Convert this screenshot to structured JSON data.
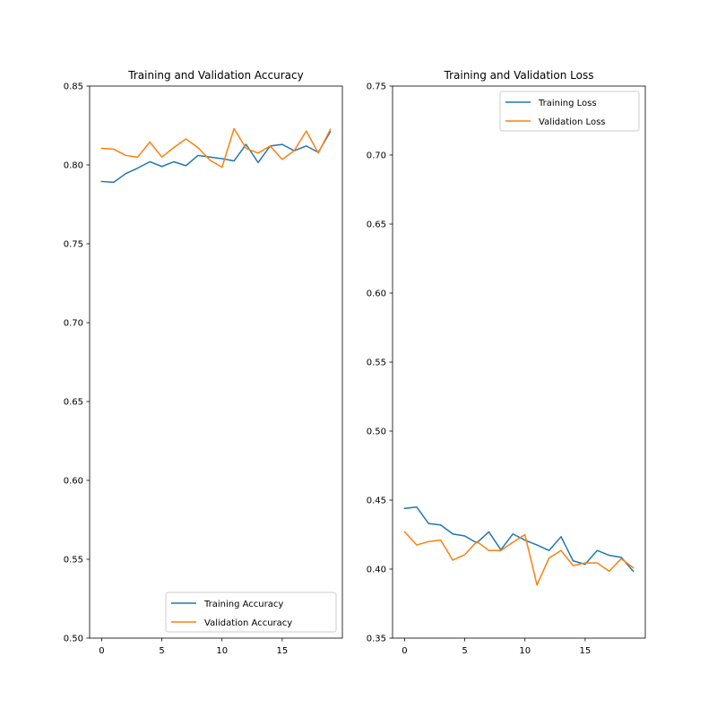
{
  "chart_data": [
    {
      "type": "line",
      "title": "Training and Validation Accuracy",
      "xlabel": "",
      "ylabel": "",
      "xlim": [
        -1,
        20
      ],
      "ylim": [
        0.5,
        0.85
      ],
      "xticks": [
        "0",
        "5",
        "10",
        "15"
      ],
      "xtick_values": [
        0,
        5,
        10,
        15
      ],
      "yticks": [
        "0.50",
        "0.55",
        "0.60",
        "0.65",
        "0.70",
        "0.75",
        "0.80",
        "0.85"
      ],
      "ytick_values": [
        0.5,
        0.55,
        0.6,
        0.65,
        0.7,
        0.75,
        0.8,
        0.85
      ],
      "grid": false,
      "legend_position": "lower-right",
      "x": [
        0,
        1,
        2,
        3,
        4,
        5,
        6,
        7,
        8,
        9,
        10,
        11,
        12,
        13,
        14,
        15,
        16,
        17,
        18,
        19
      ],
      "series": [
        {
          "name": "Training Accuracy",
          "color": "#1f77b4",
          "values": [
            0.7895,
            0.789,
            0.7945,
            0.798,
            0.802,
            0.799,
            0.802,
            0.7995,
            0.806,
            0.805,
            0.804,
            0.8025,
            0.813,
            0.8015,
            0.812,
            0.813,
            0.809,
            0.812,
            0.808,
            0.821
          ]
        },
        {
          "name": "Validation Accuracy",
          "color": "#ff7f0e",
          "values": [
            0.8105,
            0.81,
            0.806,
            0.805,
            0.8145,
            0.805,
            0.811,
            0.8165,
            0.811,
            0.803,
            0.7985,
            0.823,
            0.8105,
            0.8075,
            0.812,
            0.8035,
            0.809,
            0.8215,
            0.8075,
            0.8225
          ]
        }
      ]
    },
    {
      "type": "line",
      "title": "Training and Validation Loss",
      "xlabel": "",
      "ylabel": "",
      "xlim": [
        -1,
        20
      ],
      "ylim": [
        0.35,
        0.75
      ],
      "xticks": [
        "0",
        "5",
        "10",
        "15"
      ],
      "xtick_values": [
        0,
        5,
        10,
        15
      ],
      "yticks": [
        "0.35",
        "0.40",
        "0.45",
        "0.50",
        "0.55",
        "0.60",
        "0.65",
        "0.70",
        "0.75"
      ],
      "ytick_values": [
        0.35,
        0.4,
        0.45,
        0.5,
        0.55,
        0.6,
        0.65,
        0.7,
        0.75
      ],
      "grid": false,
      "legend_position": "upper-right",
      "x": [
        0,
        1,
        2,
        3,
        4,
        5,
        6,
        7,
        8,
        9,
        10,
        11,
        12,
        13,
        14,
        15,
        16,
        17,
        18,
        19
      ],
      "series": [
        {
          "name": "Training Loss",
          "color": "#1f77b4",
          "values": [
            0.444,
            0.445,
            0.433,
            0.432,
            0.4255,
            0.424,
            0.419,
            0.427,
            0.414,
            0.4255,
            0.421,
            0.4175,
            0.4135,
            0.4235,
            0.406,
            0.4035,
            0.4135,
            0.41,
            0.4085,
            0.3985
          ]
        },
        {
          "name": "Validation Loss",
          "color": "#ff7f0e",
          "values": [
            0.427,
            0.4175,
            0.42,
            0.421,
            0.4065,
            0.4105,
            0.42,
            0.4135,
            0.4135,
            0.4195,
            0.425,
            0.3885,
            0.408,
            0.4135,
            0.4025,
            0.4045,
            0.4045,
            0.3985,
            0.4075,
            0.401
          ]
        }
      ]
    }
  ]
}
